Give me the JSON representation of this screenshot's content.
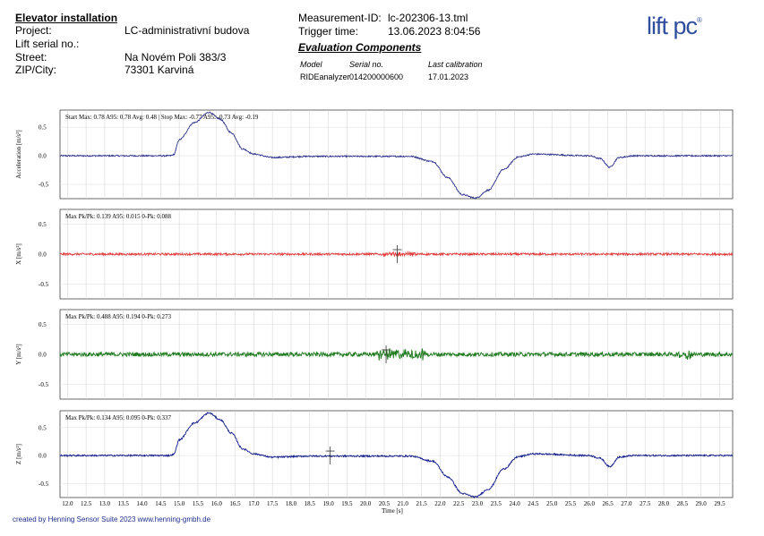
{
  "header": {
    "title": "Elevator installation",
    "project_label": "Project:",
    "project_value": "LC-administrativní budova",
    "serial_label": "Lift serial no.:",
    "street_label": "Street:",
    "street_value": "Na Novém Poli 383/3",
    "zip_label": "ZIP/City:",
    "zip_value": "73301 Karviná",
    "measurement_label": "Measurement-ID:",
    "measurement_value": "lc-202306-13.tml",
    "trigger_label": "Trigger time:",
    "trigger_value": "13.06.2023 8:04:56"
  },
  "evaluation": {
    "title": "Evaluation Components",
    "col_model": "Model",
    "col_serial": "Serial no.",
    "col_calibration": "Last calibration",
    "model": "RIDEanalyzer",
    "serial": "014200000600",
    "calibration": "17.01.2023"
  },
  "logo": {
    "text": "lift pc",
    "mark": "®",
    "color": "#2f4f9e"
  },
  "footer": {
    "text": "created by Henning Sensor Suite 2023 www.henning-gmbh.de"
  },
  "chart_data": [
    {
      "type": "line",
      "ylabel": "Acceleration [m/s²]",
      "annotation": "Start Max: 0.78 A95: 0.78 Avg: 0.48 | Stop Max: -0.77 A95: -0.73 Avg: -0.19",
      "color": "#2b2f8a",
      "yticks": [
        "0.5",
        "0.0",
        "-0.5"
      ],
      "ylim": [
        -0.75,
        0.8
      ],
      "xlim": [
        11.8,
        29.85
      ],
      "profile": [
        [
          11.8,
          0
        ],
        [
          14.75,
          0
        ],
        [
          14.85,
          0.02
        ],
        [
          15.0,
          0.28
        ],
        [
          15.4,
          0.58
        ],
        [
          15.8,
          0.76
        ],
        [
          16.1,
          0.64
        ],
        [
          16.4,
          0.4
        ],
        [
          16.7,
          0.12
        ],
        [
          17.0,
          0.03
        ],
        [
          17.5,
          -0.03
        ],
        [
          18.5,
          -0.01
        ],
        [
          20.0,
          -0.01
        ],
        [
          21.2,
          -0.01
        ],
        [
          21.8,
          -0.1
        ],
        [
          22.2,
          -0.38
        ],
        [
          22.6,
          -0.68
        ],
        [
          22.95,
          -0.74
        ],
        [
          23.3,
          -0.6
        ],
        [
          23.7,
          -0.24
        ],
        [
          24.1,
          -0.02
        ],
        [
          24.5,
          0.03
        ],
        [
          26.0,
          0.0
        ],
        [
          26.3,
          -0.05
        ],
        [
          26.55,
          -0.2
        ],
        [
          26.8,
          -0.03
        ],
        [
          27.2,
          0.0
        ],
        [
          29.85,
          0.0
        ]
      ],
      "noise": 0.012,
      "cursor_x": null
    },
    {
      "type": "line",
      "ylabel": "X [m/s²]",
      "annotation": "Max Pk/Pk: 0.139 A95: 0.015 0-Pk: 0.088",
      "color": "#e23a3a",
      "yticks": [
        "0.5",
        "0.0",
        "-0.5"
      ],
      "ylim": [
        -0.75,
        0.75
      ],
      "xlim": [
        11.8,
        29.85
      ],
      "profile": [
        [
          11.8,
          0
        ],
        [
          29.85,
          0
        ]
      ],
      "noise": 0.018,
      "cursor_x": 20.85
    },
    {
      "type": "line",
      "ylabel": "Y [m/s²]",
      "annotation": "Max Pk/Pk: 0.488 A95: 0.194 0-Pk: 0.273",
      "color": "#1e7a1e",
      "yticks": [
        "0.5",
        "0.0",
        "-0.5"
      ],
      "ylim": [
        -0.75,
        0.75
      ],
      "xlim": [
        11.8,
        29.85
      ],
      "profile": [
        [
          11.8,
          0
        ],
        [
          29.85,
          0
        ]
      ],
      "noise": 0.035,
      "cursor_x": 20.55
    },
    {
      "type": "line",
      "ylabel": "Z [m/s²]",
      "annotation": "Max Pk/Pk: 0.134 A95: 0.095 0-Pk: 0.337",
      "color": "#101a8a",
      "yticks": [
        "0.5",
        "0.0",
        "-0.5"
      ],
      "ylim": [
        -0.75,
        0.8
      ],
      "xlim": [
        11.8,
        29.85
      ],
      "profile": [
        [
          11.8,
          0
        ],
        [
          14.75,
          0
        ],
        [
          14.85,
          0.02
        ],
        [
          15.0,
          0.28
        ],
        [
          15.4,
          0.58
        ],
        [
          15.8,
          0.76
        ],
        [
          16.1,
          0.64
        ],
        [
          16.4,
          0.4
        ],
        [
          16.7,
          0.12
        ],
        [
          17.0,
          0.03
        ],
        [
          17.5,
          -0.03
        ],
        [
          18.5,
          -0.01
        ],
        [
          20.0,
          -0.01
        ],
        [
          21.2,
          -0.01
        ],
        [
          21.8,
          -0.1
        ],
        [
          22.2,
          -0.38
        ],
        [
          22.6,
          -0.68
        ],
        [
          22.95,
          -0.74
        ],
        [
          23.3,
          -0.6
        ],
        [
          23.7,
          -0.24
        ],
        [
          24.1,
          -0.02
        ],
        [
          24.5,
          0.03
        ],
        [
          26.0,
          0.0
        ],
        [
          26.3,
          -0.05
        ],
        [
          26.55,
          -0.2
        ],
        [
          26.8,
          -0.03
        ],
        [
          27.2,
          0.0
        ],
        [
          29.85,
          0.0
        ]
      ],
      "noise": 0.014,
      "cursor_x": 19.05
    }
  ],
  "x_axis": {
    "label": "Time",
    "unit": "[s]",
    "ticks": [
      "12.0",
      "12.5",
      "13.0",
      "13.5",
      "14.0",
      "14.5",
      "15.0",
      "15.5",
      "16.0",
      "16.5",
      "17.0",
      "17.5",
      "18.0",
      "18.5",
      "19.0",
      "19.5",
      "20.0",
      "20.5",
      "21.0",
      "21.5",
      "22.0",
      "22.5",
      "23.0",
      "23.5",
      "24.0",
      "24.5",
      "25.0",
      "25.5",
      "26.0",
      "26.5",
      "27.0",
      "27.5",
      "28.0",
      "28.5",
      "29.0",
      "29.5"
    ]
  }
}
